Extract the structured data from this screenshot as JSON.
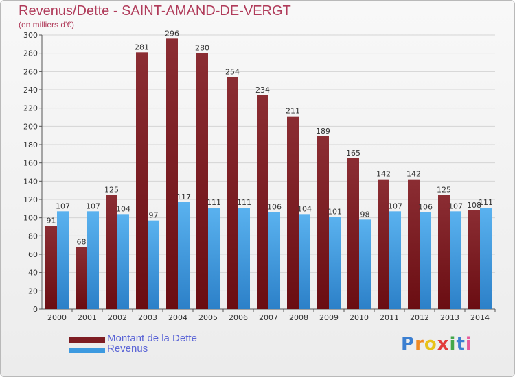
{
  "header": {
    "title": "Revenus/Dette - SAINT-AMAND-DE-VERGT",
    "subtitle": "(en milliers d'€)"
  },
  "colors": {
    "dette": "#7d1c22",
    "revenus": "#3d9ae0",
    "title": "#b03b5a",
    "legend_text": "#5a64d6"
  },
  "chart_data": {
    "type": "bar",
    "categories": [
      "2000",
      "2001",
      "2002",
      "2003",
      "2004",
      "2005",
      "2006",
      "2007",
      "2008",
      "2009",
      "2010",
      "2011",
      "2012",
      "2013",
      "2014"
    ],
    "series": [
      {
        "name": "Montant de la Dette",
        "values": [
          91,
          68,
          125,
          281,
          296,
          280,
          254,
          234,
          211,
          189,
          165,
          142,
          142,
          125,
          108
        ]
      },
      {
        "name": "Revenus",
        "values": [
          107,
          107,
          104,
          97,
          117,
          111,
          111,
          106,
          104,
          101,
          98,
          107,
          106,
          107,
          111
        ]
      }
    ],
    "ylim": [
      0,
      300
    ],
    "yticks": [
      0,
      20,
      40,
      60,
      80,
      100,
      120,
      140,
      160,
      180,
      200,
      220,
      240,
      260,
      280,
      300
    ],
    "grid": true,
    "legend": "bottom-left"
  },
  "logo": {
    "text": "Proxiti"
  }
}
